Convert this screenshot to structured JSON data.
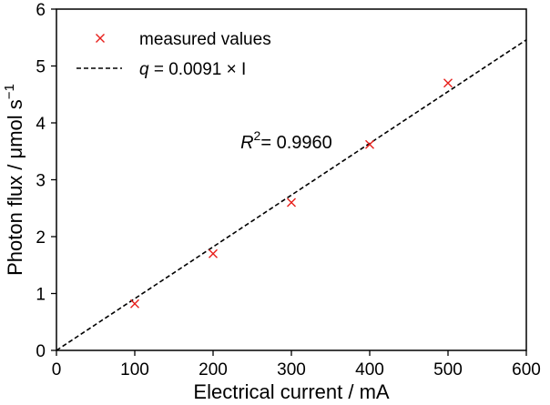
{
  "chart_data": {
    "type": "scatter",
    "xlabel": "Electrical current / mA",
    "ylabel": {
      "main": "Photon flux / μmol s",
      "sup": "−1"
    },
    "xlim": [
      0,
      600
    ],
    "ylim": [
      0,
      6
    ],
    "xticks": [
      "0",
      "100",
      "200",
      "300",
      "400",
      "500",
      "600"
    ],
    "yticks": [
      "0",
      "1",
      "2",
      "3",
      "4",
      "5",
      "6"
    ],
    "grid": false,
    "legend_position": "top-left",
    "series": [
      {
        "name": "measured values",
        "marker": "x",
        "color": "#e8201c",
        "x": [
          100,
          200,
          300,
          400,
          500
        ],
        "y": [
          0.82,
          1.7,
          2.6,
          3.62,
          4.7
        ]
      }
    ],
    "fit": {
      "legend_label": {
        "var": "q",
        "rest": " = 0.0091 × I"
      },
      "slope": 0.0091,
      "x_range": [
        0,
        600
      ],
      "color": "#000000",
      "style": "dashed"
    },
    "annotation": {
      "var": "R",
      "sup": "2",
      "rest": "= 0.9960",
      "x": 235,
      "y": 3.55
    }
  }
}
